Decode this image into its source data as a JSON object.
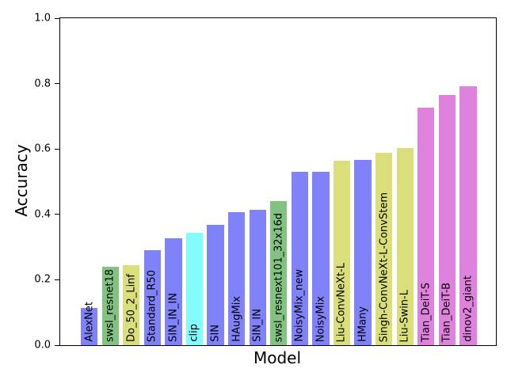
{
  "chart_data": {
    "type": "bar",
    "title": "",
    "xlabel": "Model",
    "ylabel": "Accuracy",
    "ylim": [
      0.0,
      1.0
    ],
    "yticks": [
      0.0,
      0.2,
      0.4,
      0.6,
      0.8,
      1.0
    ],
    "grid": false,
    "legend": "none",
    "bar_label_style": "vertical, anchored at bar bottom, black text",
    "categories": [
      "AlexNet",
      "swsl_resnet18",
      "Do_50_2_Linf",
      "Standard_R50",
      "SIN_IN_IN",
      "clip",
      "SIN",
      "HAugMix",
      "SIN_IN",
      "swsl_resnext101_32x16d",
      "NoisyMix_new",
      "NoisyMix",
      "Liu-ConvNeXt-L",
      "HMany",
      "Singh-ConvNeXt-L-ConvStem",
      "Liu-Swin-L",
      "Tian_DeiT-S",
      "Tian_DeiT-B",
      "dinov2_giant"
    ],
    "values": [
      0.113,
      0.24,
      0.245,
      0.291,
      0.326,
      0.345,
      0.369,
      0.406,
      0.413,
      0.44,
      0.53,
      0.531,
      0.565,
      0.567,
      0.589,
      0.603,
      0.727,
      0.765,
      0.793
    ],
    "colors": [
      "#7f82f8",
      "#82c382",
      "#dade7b",
      "#7f82f8",
      "#7f82f8",
      "#83fcfc",
      "#7f82f8",
      "#7f82f8",
      "#7f82f8",
      "#82c382",
      "#7f82f8",
      "#7f82f8",
      "#dade7b",
      "#7f82f8",
      "#dade7b",
      "#dade7b",
      "#de82de",
      "#de82de",
      "#de82de"
    ],
    "palette": {
      "blue": "#7f82f8",
      "green": "#82c382",
      "yellow": "#dade7b",
      "cyan": "#83fcfc",
      "magenta": "#de82de",
      "axis": "#000000",
      "background": "#ffffff"
    }
  }
}
